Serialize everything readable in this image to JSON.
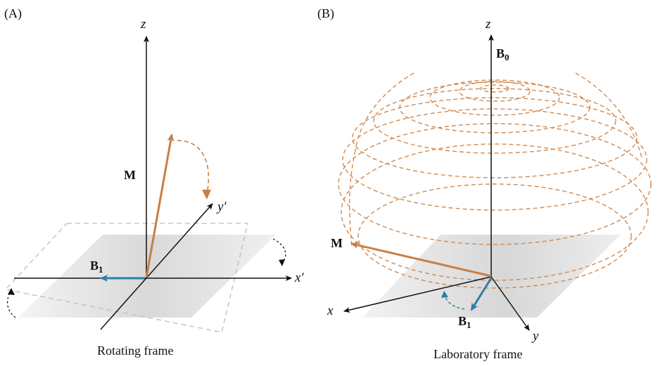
{
  "panel_a": {
    "tag": "(A)",
    "axis_z": "z",
    "axis_y": "y′",
    "axis_x": "x′",
    "label_m": "M",
    "label_b1_main": "B",
    "label_b1_sub": "1",
    "caption": "Rotating frame"
  },
  "panel_b": {
    "tag": "(B)",
    "axis_z": "z",
    "axis_x": "x",
    "axis_y": "y",
    "label_b0_main": "B",
    "label_b0_sub": "0",
    "label_m": "M",
    "label_b1_main": "B",
    "label_b1_sub": "1",
    "caption": "Laboratory frame"
  },
  "colors": {
    "magnetization": "#c87f45",
    "b1_field": "#2c7fa3",
    "axes": "#111111",
    "plane": "#e4e4e4",
    "tilted_plane": "#bdbdbd",
    "spiral": "#d08a4f"
  },
  "icons": {
    "rotation_arrow": "curved-dashed-arrow-icon"
  }
}
